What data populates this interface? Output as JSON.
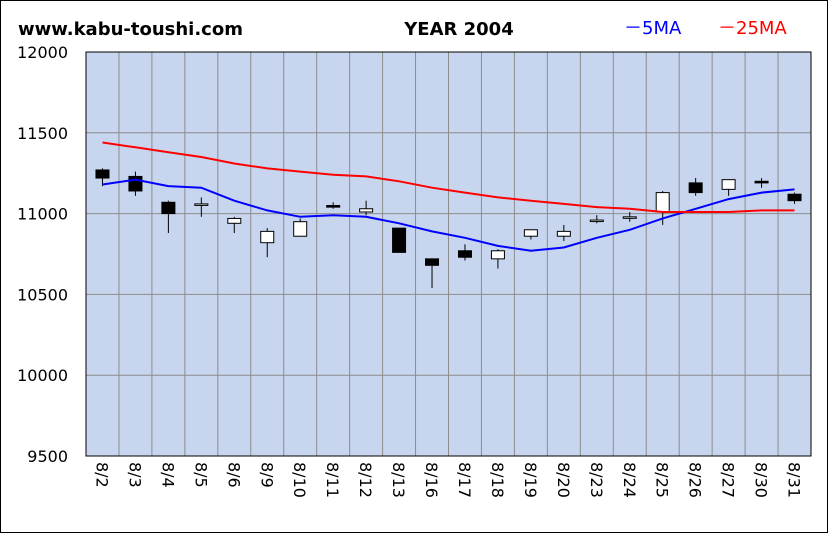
{
  "header": {
    "site": "www.kabu-toushi.com",
    "title": "YEAR 2004",
    "legend_5ma": "－5MA",
    "legend_25ma": "－25MA"
  },
  "colors": {
    "plot_bg": "#c7d6ee",
    "grid": "#8c8c8c",
    "ma5": "#0000ff",
    "ma25": "#ff0000",
    "candle_up": "#ffffff",
    "candle_down": "#000000"
  },
  "chart_data": {
    "type": "candlestick",
    "title": "YEAR 2004",
    "ylim": [
      9500,
      12000
    ],
    "yticks": [
      9500,
      10000,
      10500,
      11000,
      11500,
      12000
    ],
    "ytick_labels": [
      "9500",
      "10000",
      "10500",
      "11000",
      "11500",
      "12000"
    ],
    "grid": true,
    "legend_position": "top-right",
    "categories": [
      "8/2",
      "8/3",
      "8/4",
      "8/5",
      "8/6",
      "8/9",
      "8/10",
      "8/11",
      "8/12",
      "8/13",
      "8/16",
      "8/17",
      "8/18",
      "8/19",
      "8/20",
      "8/23",
      "8/24",
      "8/25",
      "8/26",
      "8/27",
      "8/30",
      "8/31"
    ],
    "candles": [
      {
        "open": 11270,
        "high": 11280,
        "low": 11170,
        "close": 11220
      },
      {
        "open": 11230,
        "high": 11260,
        "low": 11110,
        "close": 11140
      },
      {
        "open": 11070,
        "high": 11080,
        "low": 10880,
        "close": 11000
      },
      {
        "open": 11060,
        "high": 11100,
        "low": 10980,
        "close": 11060
      },
      {
        "open": 10940,
        "high": 10980,
        "low": 10880,
        "close": 10970
      },
      {
        "open": 10820,
        "high": 10910,
        "low": 10730,
        "close": 10890
      },
      {
        "open": 10860,
        "high": 10970,
        "low": 10860,
        "close": 10950
      },
      {
        "open": 11050,
        "high": 11070,
        "low": 11030,
        "close": 11040
      },
      {
        "open": 11010,
        "high": 11080,
        "low": 10990,
        "close": 11030
      },
      {
        "open": 10910,
        "high": 10910,
        "low": 10760,
        "close": 10760
      },
      {
        "open": 10720,
        "high": 10720,
        "low": 10540,
        "close": 10680
      },
      {
        "open": 10770,
        "high": 10810,
        "low": 10710,
        "close": 10730
      },
      {
        "open": 10720,
        "high": 10780,
        "low": 10660,
        "close": 10770
      },
      {
        "open": 10860,
        "high": 10900,
        "low": 10840,
        "close": 10900
      },
      {
        "open": 10860,
        "high": 10930,
        "low": 10830,
        "close": 10890
      },
      {
        "open": 10960,
        "high": 10990,
        "low": 10940,
        "close": 10960
      },
      {
        "open": 10980,
        "high": 11010,
        "low": 10950,
        "close": 10980
      },
      {
        "open": 11010,
        "high": 11140,
        "low": 10930,
        "close": 11130
      },
      {
        "open": 11190,
        "high": 11220,
        "low": 11110,
        "close": 11130
      },
      {
        "open": 11150,
        "high": 11200,
        "low": 11110,
        "close": 11210
      },
      {
        "open": 11200,
        "high": 11220,
        "low": 11160,
        "close": 11190
      },
      {
        "open": 11120,
        "high": 11130,
        "low": 11060,
        "close": 11080
      }
    ],
    "series": [
      {
        "name": "5MA",
        "color": "#0000ff",
        "values": [
          11180,
          11210,
          11170,
          11160,
          11080,
          11020,
          10980,
          10990,
          10980,
          10940,
          10890,
          10850,
          10800,
          10770,
          10790,
          10850,
          10900,
          10970,
          11030,
          11090,
          11130,
          11150
        ]
      },
      {
        "name": "25MA",
        "color": "#ff0000",
        "values": [
          11440,
          11410,
          11380,
          11350,
          11310,
          11280,
          11260,
          11240,
          11230,
          11200,
          11160,
          11130,
          11100,
          11080,
          11060,
          11040,
          11030,
          11010,
          11010,
          11010,
          11020,
          11020
        ]
      }
    ]
  }
}
